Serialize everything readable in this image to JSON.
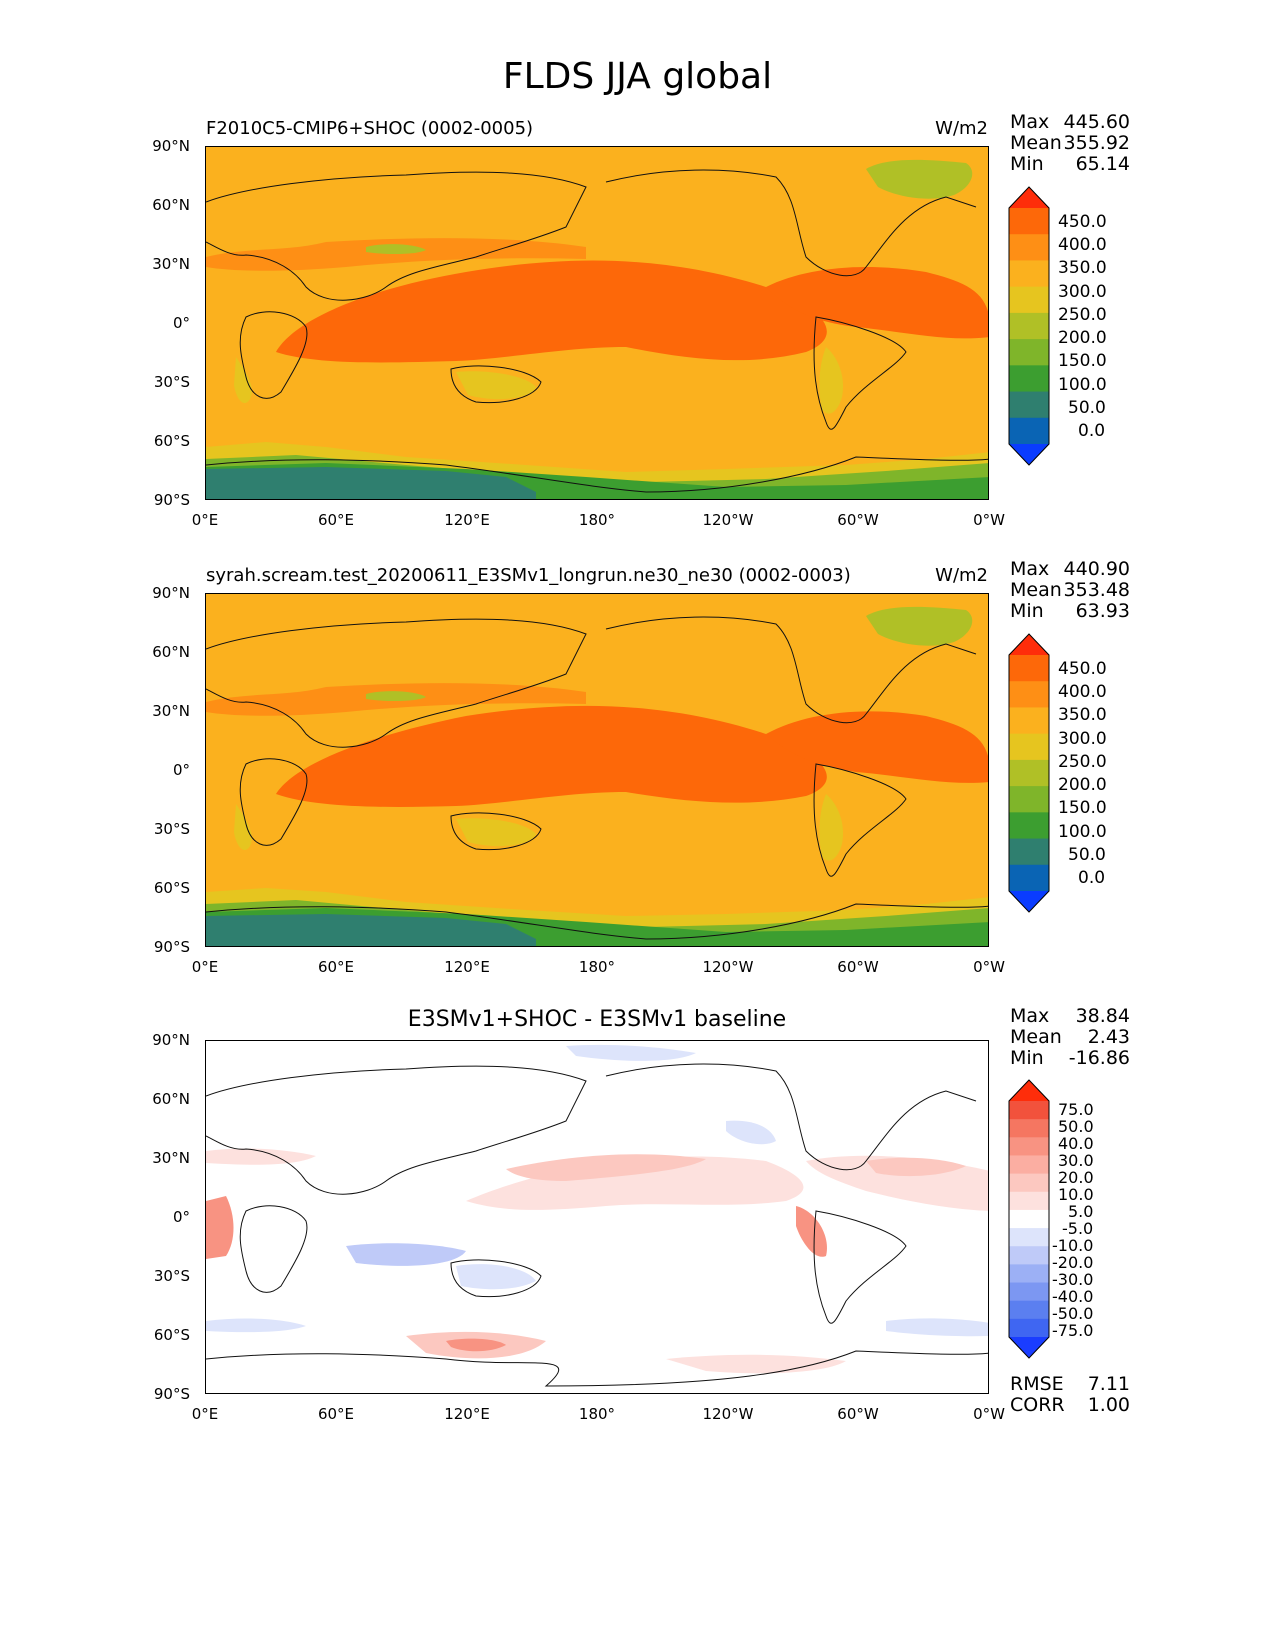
{
  "figure": {
    "suptitle": "FLDS JJA global"
  },
  "colors": {
    "abs_levels": [
      "#0a3cff",
      "#0a64b4",
      "#2f7f6f",
      "#3c9e30",
      "#7fb52a",
      "#b0c026",
      "#e6c51f",
      "#fbb11e",
      "#fe8f15",
      "#fd6809",
      "#fe2d0a"
    ],
    "diff_levels": [
      "#1a3dff",
      "#3f66f2",
      "#5b7ff0",
      "#7c97f2",
      "#9cb0f5",
      "#bfcaf8",
      "#dde4fb",
      "#ffffff",
      "#fde1de",
      "#fcc8c0",
      "#fbaea2",
      "#f89382",
      "#f57661",
      "#f2523c",
      "#fe2d0a"
    ],
    "coastline": "#111111"
  },
  "chart_data": [
    {
      "type": "heatmap",
      "panel": "test",
      "title": "F2010C5-CMIP6+SHOC (0002-0005)",
      "units": "W/m2",
      "stats": [
        {
          "label": "Max",
          "value": "445.60"
        },
        {
          "label": "Mean",
          "value": "355.92"
        },
        {
          "label": "Min",
          "value": "65.14"
        }
      ],
      "y_ticks": [
        "90°N",
        "60°N",
        "30°N",
        "0°",
        "30°S",
        "60°S",
        "90°S"
      ],
      "x_ticks": [
        "0°E",
        "60°E",
        "120°E",
        "180°",
        "120°W",
        "60°W",
        "0°W"
      ],
      "xlim": [
        0,
        360
      ],
      "ylim": [
        -90,
        90
      ],
      "colorbar": {
        "levels": [
          "450.0",
          "400.0",
          "350.0",
          "300.0",
          "250.0",
          "200.0",
          "150.0",
          "100.0",
          "50.0",
          "0.0"
        ],
        "extend": "both"
      }
    },
    {
      "type": "heatmap",
      "panel": "reference",
      "title": "syrah.scream.test_20200611_E3SMv1_longrun.ne30_ne30 (0002-0003)",
      "units": "W/m2",
      "stats": [
        {
          "label": "Max",
          "value": "440.90"
        },
        {
          "label": "Mean",
          "value": "353.48"
        },
        {
          "label": "Min",
          "value": "63.93"
        }
      ],
      "y_ticks": [
        "90°N",
        "60°N",
        "30°N",
        "0°",
        "30°S",
        "60°S",
        "90°S"
      ],
      "x_ticks": [
        "0°E",
        "60°E",
        "120°E",
        "180°",
        "120°W",
        "60°W",
        "0°W"
      ],
      "xlim": [
        0,
        360
      ],
      "ylim": [
        -90,
        90
      ],
      "colorbar": {
        "levels": [
          "450.0",
          "400.0",
          "350.0",
          "300.0",
          "250.0",
          "200.0",
          "150.0",
          "100.0",
          "50.0",
          "0.0"
        ],
        "extend": "both"
      }
    },
    {
      "type": "heatmap",
      "panel": "difference",
      "title": "E3SMv1+SHOC - E3SMv1 baseline",
      "units": "",
      "stats": [
        {
          "label": "Max",
          "value": "38.84"
        },
        {
          "label": "Mean",
          "value": "2.43"
        },
        {
          "label": "Min",
          "value": "-16.86"
        }
      ],
      "extra_stats": [
        {
          "label": "RMSE",
          "value": "7.11"
        },
        {
          "label": "CORR",
          "value": "1.00"
        }
      ],
      "y_ticks": [
        "90°N",
        "60°N",
        "30°N",
        "0°",
        "30°S",
        "60°S",
        "90°S"
      ],
      "x_ticks": [
        "0°E",
        "60°E",
        "120°E",
        "180°",
        "120°W",
        "60°W",
        "0°W"
      ],
      "xlim": [
        0,
        360
      ],
      "ylim": [
        -90,
        90
      ],
      "colorbar": {
        "levels": [
          "75.0",
          "50.0",
          "40.0",
          "30.0",
          "20.0",
          "10.0",
          "5.0",
          "-5.0",
          "-10.0",
          "-20.0",
          "-30.0",
          "-40.0",
          "-50.0",
          "-75.0"
        ],
        "extend": "both"
      }
    }
  ]
}
